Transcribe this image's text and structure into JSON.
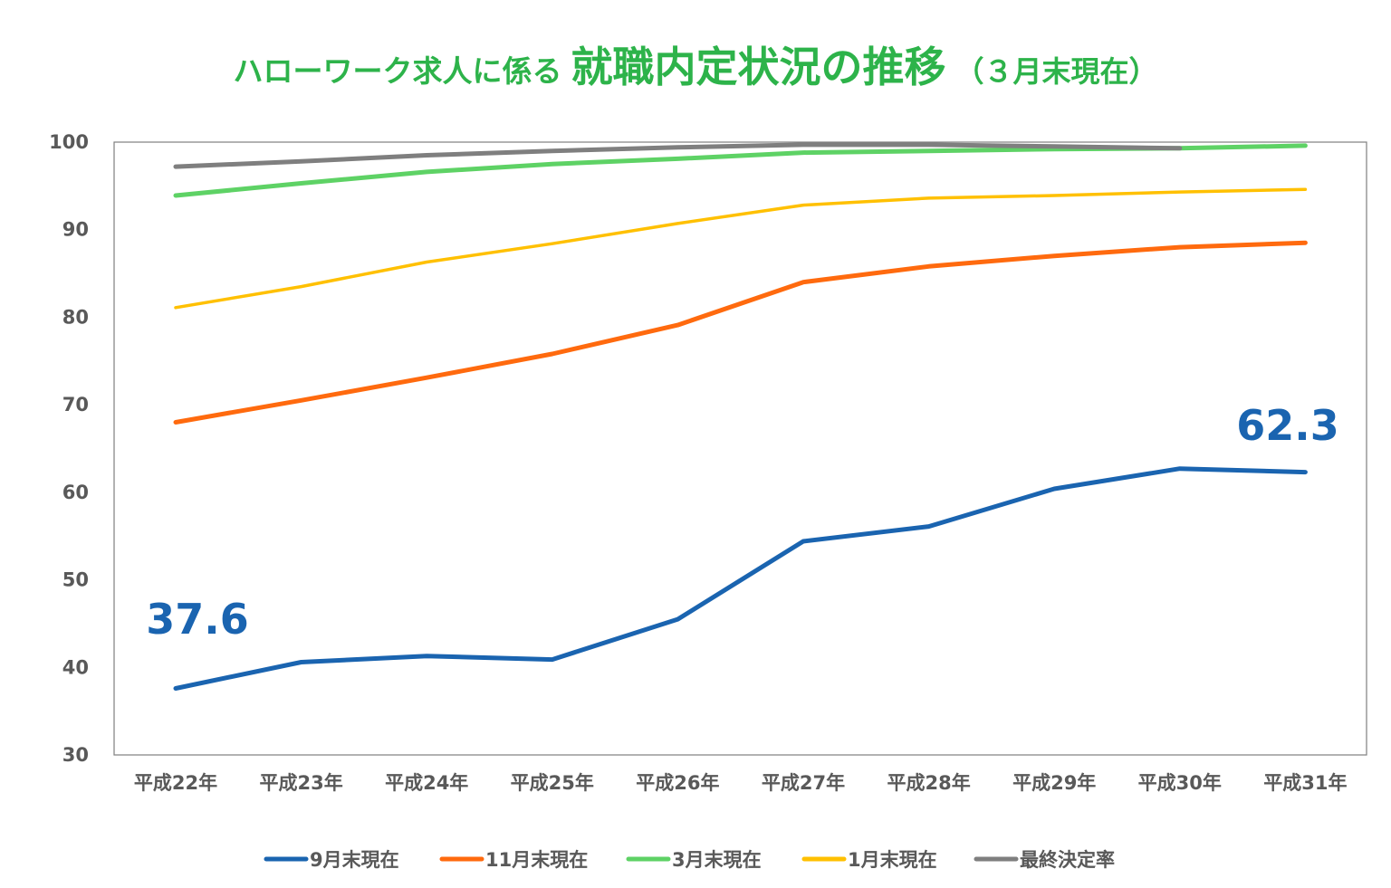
{
  "chart_data": {
    "type": "line",
    "title_prefix": "ハローワーク求人に係る",
    "title_main": "就職内定状況の推移",
    "title_suffix": "（３月末現在）",
    "xlabel": "",
    "ylabel": "",
    "ylim": [
      30,
      100
    ],
    "y_ticks": [
      "100",
      "90",
      "80",
      "70",
      "60",
      "50",
      "40",
      "30"
    ],
    "y_tick_values": [
      100,
      90,
      80,
      70,
      60,
      50,
      40,
      30
    ],
    "grid": false,
    "legend_position": "bottom",
    "categories": [
      "平成22年",
      "平成23年",
      "平成24年",
      "平成25年",
      "平成26年",
      "平成27年",
      "平成28年",
      "平成29年",
      "平成30年",
      "平成31年"
    ],
    "series": [
      {
        "name": "9月末現在",
        "color": "#1a64b0",
        "values": [
          37.6,
          40.6,
          41.3,
          40.9,
          45.5,
          54.4,
          56.1,
          60.4,
          62.7,
          62.3
        ]
      },
      {
        "name": "11月末現在",
        "color": "#ff6a0e",
        "values": [
          68.0,
          70.5,
          73.1,
          75.8,
          79.1,
          84.0,
          85.8,
          87.0,
          88.0,
          88.5
        ]
      },
      {
        "name": "3月末現在",
        "color": "#5ed265",
        "values": [
          93.9,
          95.3,
          96.6,
          97.5,
          98.1,
          98.8,
          99.0,
          99.2,
          99.3,
          99.6
        ]
      },
      {
        "name": "1月末現在",
        "color": "#ffc000",
        "values": [
          81.1,
          83.5,
          86.3,
          88.4,
          90.7,
          92.8,
          93.6,
          93.9,
          94.3,
          94.6
        ]
      },
      {
        "name": "最終決定率",
        "color": "#7f7f7f",
        "values": [
          97.2,
          97.8,
          98.5,
          99.0,
          99.4,
          99.7,
          99.7,
          99.5,
          99.3,
          null
        ]
      }
    ],
    "annotations": [
      {
        "label": "37.6",
        "series": 0,
        "index": 0
      },
      {
        "label": "62.3",
        "series": 0,
        "index": 9
      }
    ],
    "line_order": [
      0,
      1,
      3,
      2,
      4
    ]
  }
}
